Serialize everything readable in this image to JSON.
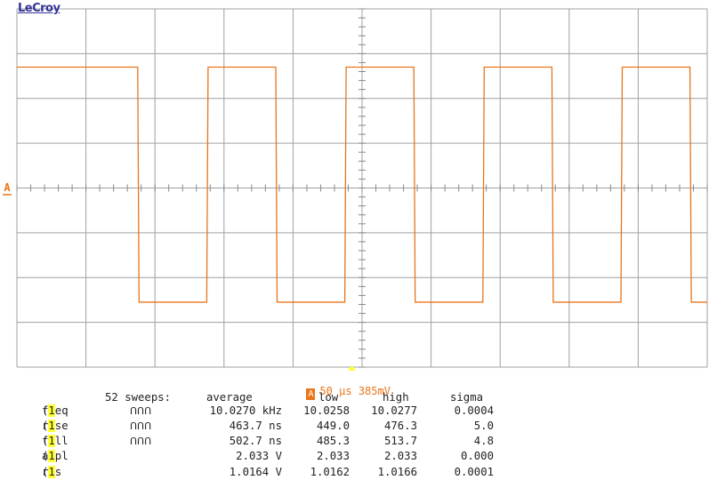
{
  "brand": "LeCroy",
  "trace_color": "#e8751a",
  "grid_color": "#a0a0a0",
  "channel_marker": "A",
  "timebase": {
    "channel": "A",
    "time_per_div": "50 µs",
    "trigger_level": "385mV"
  },
  "measurements": {
    "header": {
      "sweeps": "52 sweeps:",
      "average": "average",
      "low": "low",
      "high": "high",
      "sigma": "sigma"
    },
    "rows": [
      {
        "name": "freq",
        "channel": "1",
        "icon": "ՈՈՈ",
        "average": "10.0270 kHz",
        "low": "10.0258",
        "high": "10.0277",
        "sigma": "0.0004"
      },
      {
        "name": "rise",
        "channel": "1",
        "icon": "ՈՈՈ",
        "average": "463.7 ns",
        "low": "449.0",
        "high": "476.3",
        "sigma": "5.0"
      },
      {
        "name": "fall",
        "channel": "1",
        "icon": "ՈՈՈ",
        "average": "502.7 ns",
        "low": "485.3",
        "high": "513.7",
        "sigma": "4.8"
      },
      {
        "name": "ampl",
        "channel": "1",
        "icon": "",
        "average": "2.033 V",
        "low": "2.033",
        "high": "2.033",
        "sigma": "0.000"
      },
      {
        "name": "rms",
        "channel": "1",
        "icon": "",
        "average": "1.0164 V",
        "low": "1.0162",
        "high": "1.0166",
        "sigma": "0.0001"
      }
    ]
  },
  "chart_data": {
    "type": "line",
    "title": "",
    "xlabel": "",
    "ylabel": "",
    "grid": true,
    "x_divisions": 10,
    "y_divisions": 8,
    "waveform": "square",
    "series": [
      {
        "values_divisions": {
          "high": 2.7,
          "low": -2.55
        },
        "edges_divisions": [
          1.75,
          2.75,
          3.75,
          4.75,
          5.75,
          6.75,
          7.75,
          8.75,
          9.75
        ],
        "start_level": "high"
      }
    ]
  }
}
